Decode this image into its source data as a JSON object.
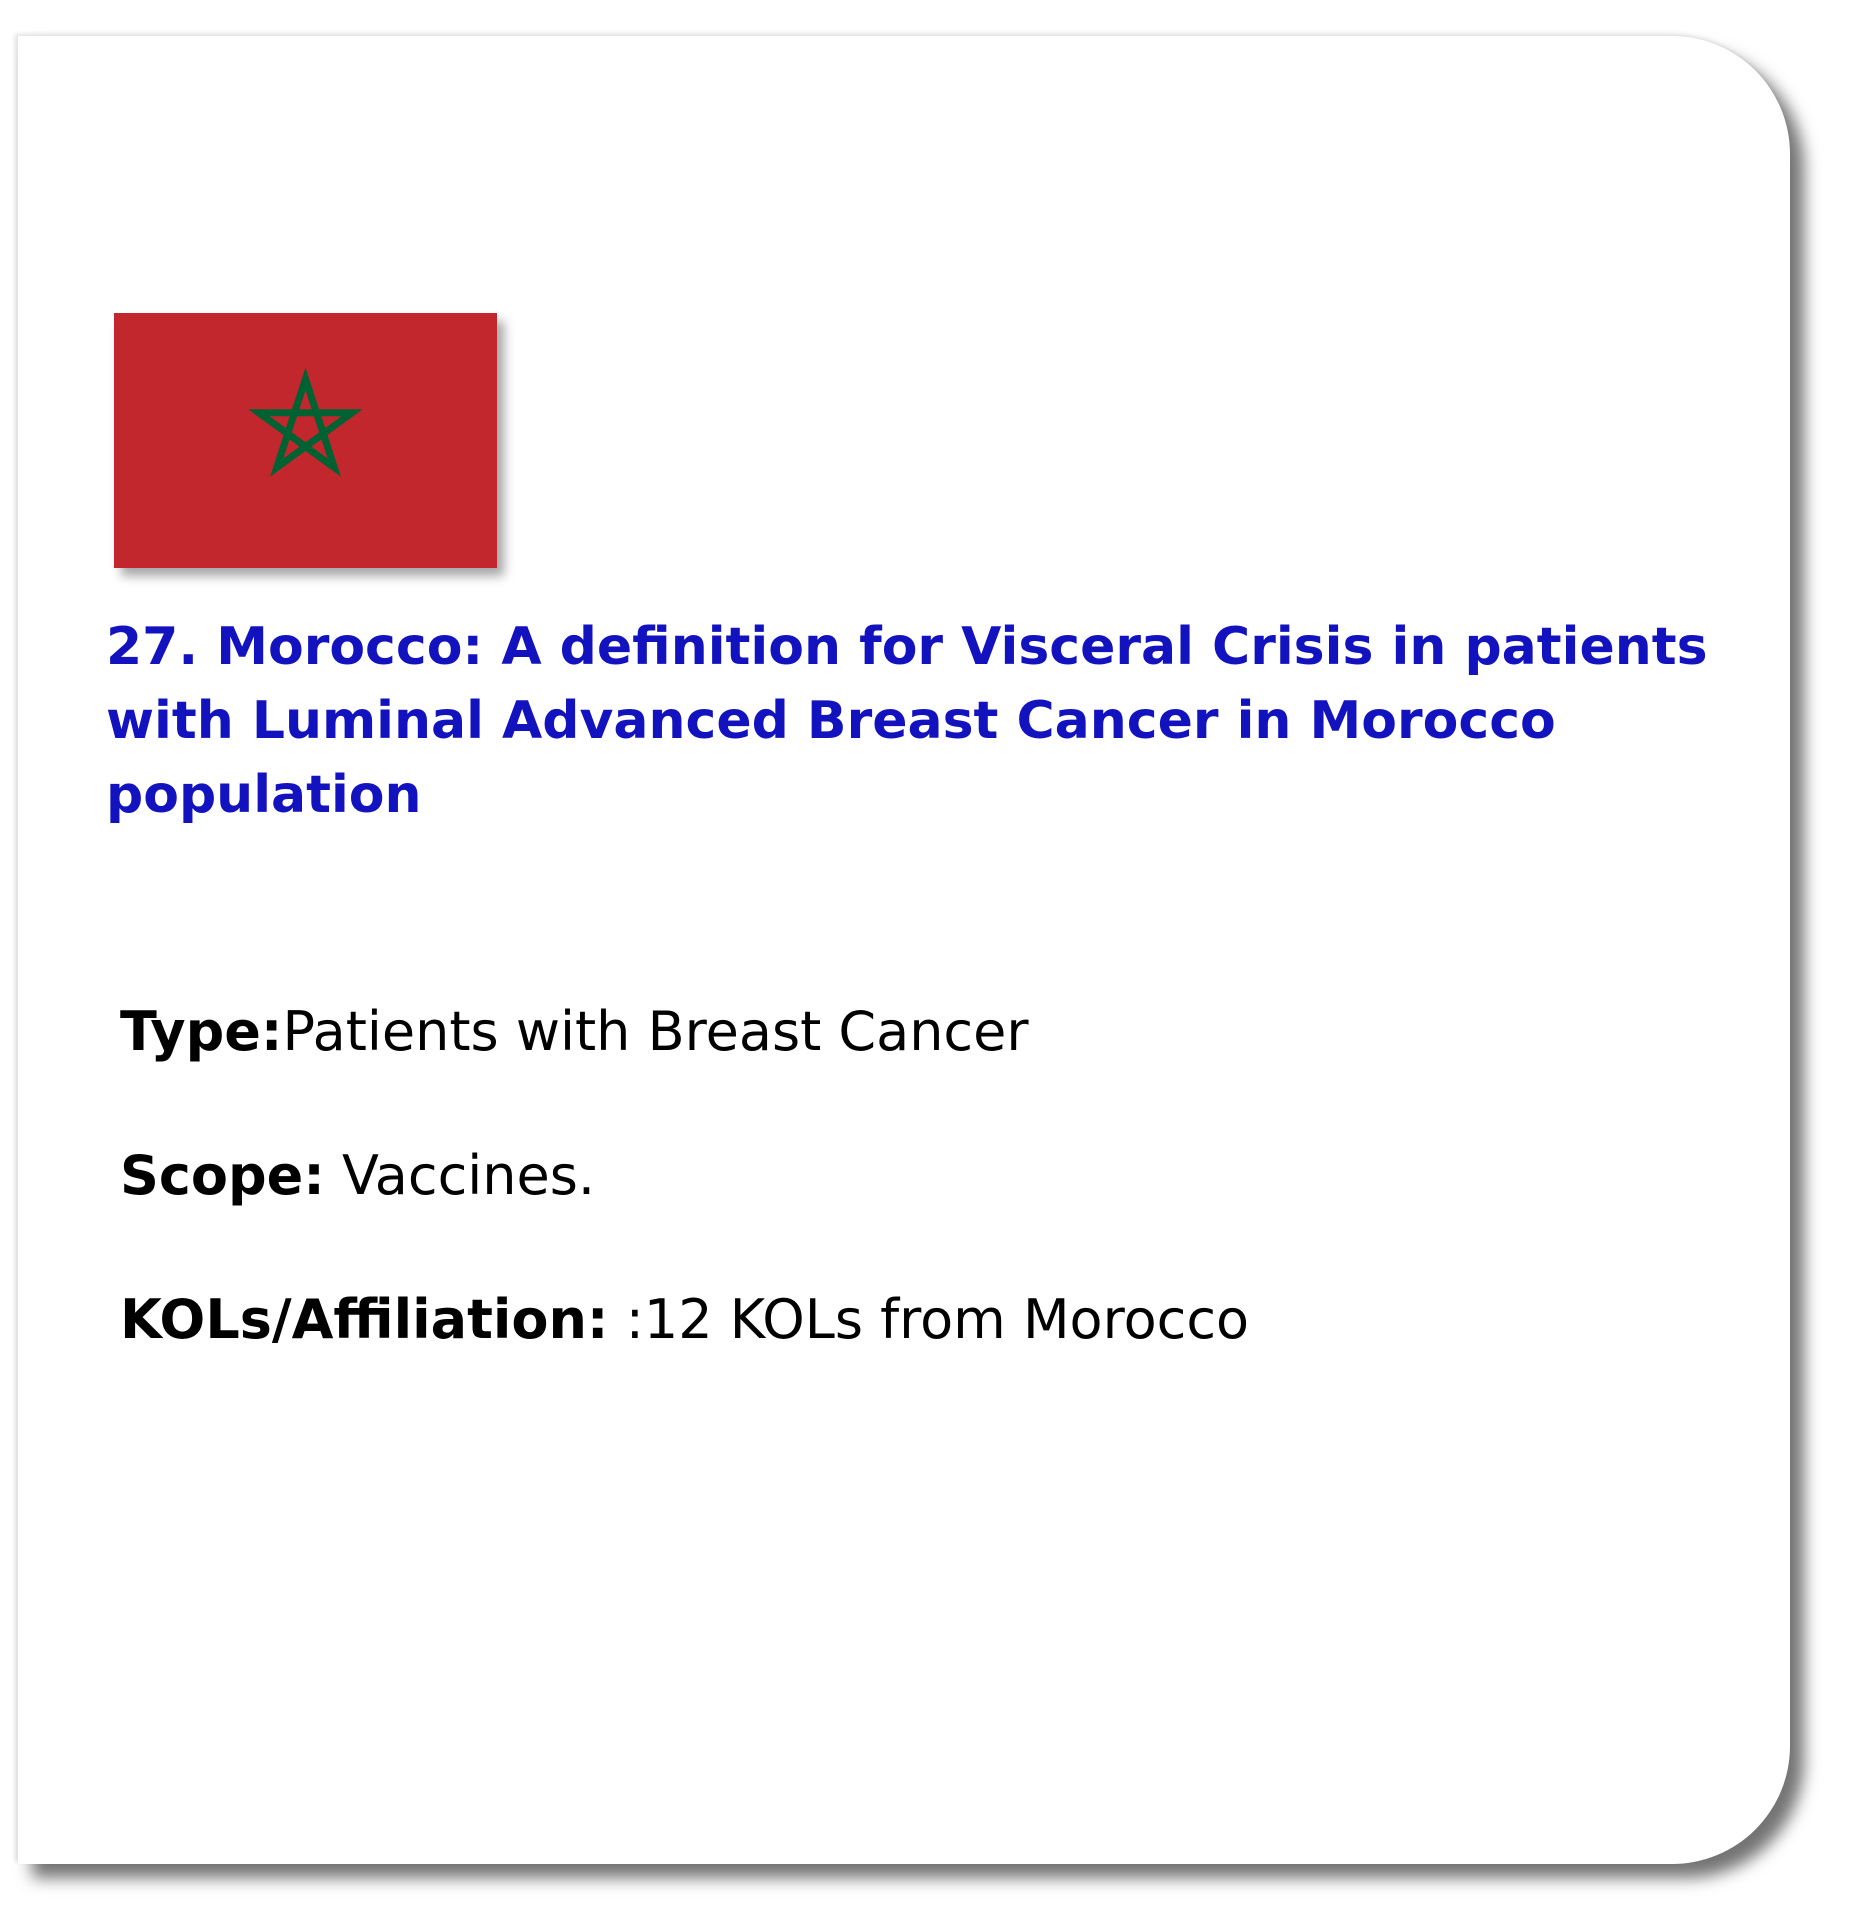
{
  "flag": {
    "country": "Morocco",
    "background_color": "#c1272d",
    "star_color": "#006233",
    "icon": "pentagram-star-icon"
  },
  "title": "27. Morocco: A definition for Visceral Crisis in patients with Luminal Advanced Breast Cancer in Morocco population",
  "title_color": "#1212be",
  "fields": {
    "type": {
      "label": "Type:",
      "value": "Patients with Breast Cancer"
    },
    "scope": {
      "label": "Scope:",
      "value": " Vaccines."
    },
    "kols": {
      "label": "KOLs/Affiliation:",
      "value": " :12 KOLs from Morocco"
    }
  }
}
